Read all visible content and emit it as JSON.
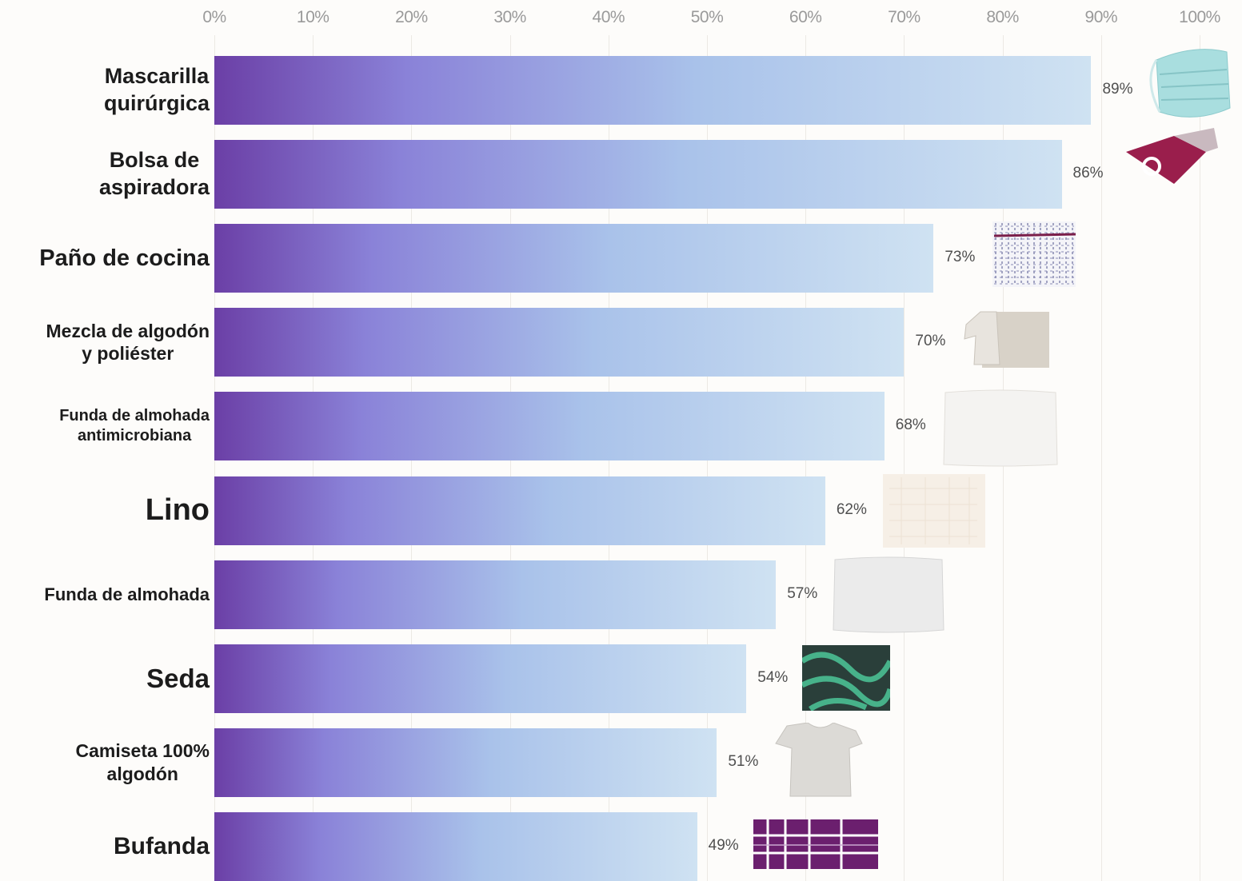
{
  "chart_data": {
    "type": "bar",
    "orientation": "horizontal",
    "xlim": [
      0,
      100
    ],
    "x_ticks": [
      "0%",
      "10%",
      "20%",
      "30%",
      "40%",
      "50%",
      "60%",
      "70%",
      "80%",
      "90%",
      "100%"
    ],
    "categories": [
      "Mascarilla\nquirúrgica",
      "Bolsa de\naspiradora",
      "Paño de cocina",
      "Mezcla de algodón\ny poliéster",
      "Funda de almohada\nantimicrobiana",
      "Lino",
      "Funda de almohada",
      "Seda",
      "Camiseta 100%\nalgodón",
      "Bufanda"
    ],
    "values": [
      89,
      86,
      73,
      70,
      68,
      62,
      57,
      54,
      51,
      49
    ],
    "value_labels": [
      "89%",
      "86%",
      "73%",
      "70%",
      "68%",
      "62%",
      "57%",
      "54%",
      "51%",
      "49%"
    ],
    "item_images": [
      "surgical-mask-image",
      "vacuum-bag-image",
      "kitchen-towel-image",
      "cotton-polyester-shirt-image",
      "antimicrobial-pillowcase-image",
      "linen-fabric-image",
      "pillowcase-image",
      "silk-fabric-image",
      "cotton-tshirt-image",
      "scarf-image"
    ],
    "bar_gradient": [
      "#6b3fa6",
      "#8a82d8",
      "#a9c2ea",
      "#cfe2f2"
    ],
    "grid": true,
    "axis_position": "top"
  }
}
